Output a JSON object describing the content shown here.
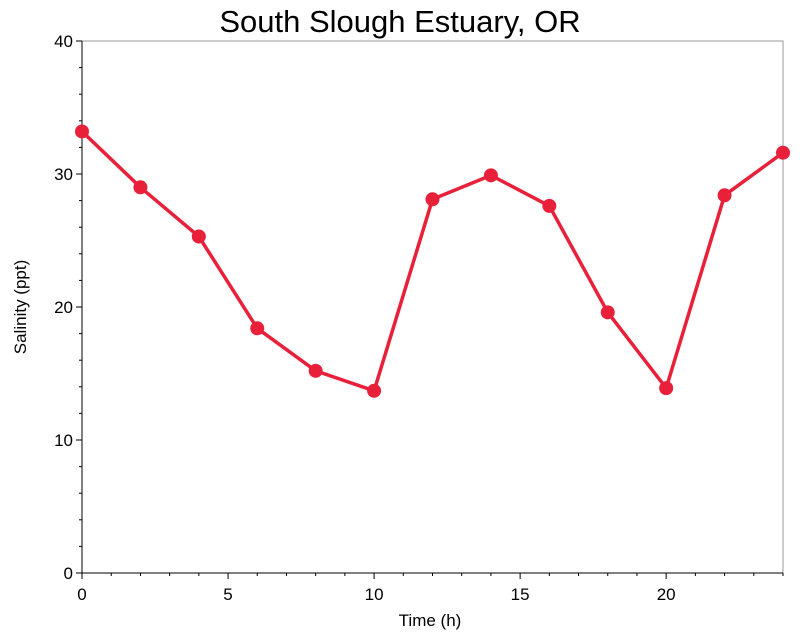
{
  "chart_data": {
    "type": "line",
    "title": "South Slough Estuary, OR",
    "xlabel": "Time (h)",
    "ylabel": "Salinity (ppt)",
    "xlim": [
      0,
      24
    ],
    "ylim": [
      0,
      40
    ],
    "x_ticks": [
      0,
      5,
      10,
      15,
      20
    ],
    "y_ticks": [
      0,
      10,
      20,
      30,
      40
    ],
    "grid": false,
    "series": [
      {
        "color": "#e8203a",
        "x": [
          0,
          2,
          4,
          6,
          8,
          10,
          12,
          14,
          16,
          18,
          20,
          22,
          24
        ],
        "y": [
          33.2,
          29.0,
          25.3,
          18.4,
          15.2,
          13.7,
          28.1,
          29.9,
          27.6,
          19.6,
          13.9,
          28.4,
          31.6
        ]
      }
    ]
  }
}
